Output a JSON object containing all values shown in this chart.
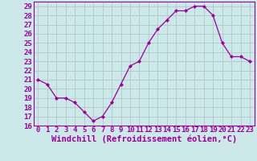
{
  "x": [
    0,
    1,
    2,
    3,
    4,
    5,
    6,
    7,
    8,
    9,
    10,
    11,
    12,
    13,
    14,
    15,
    16,
    17,
    18,
    19,
    20,
    21,
    22,
    23
  ],
  "y": [
    21.0,
    20.5,
    19.0,
    19.0,
    18.5,
    17.5,
    16.5,
    17.0,
    18.5,
    20.5,
    22.5,
    23.0,
    25.0,
    26.5,
    27.5,
    28.5,
    28.5,
    29.0,
    29.0,
    28.0,
    25.0,
    23.5,
    23.5,
    23.0
  ],
  "xlabel": "Windchill (Refroidissement éolien,°C)",
  "ylim": [
    16,
    29.5
  ],
  "xlim": [
    -0.5,
    23.5
  ],
  "yticks": [
    16,
    17,
    18,
    19,
    20,
    21,
    22,
    23,
    24,
    25,
    26,
    27,
    28,
    29
  ],
  "xticks": [
    0,
    1,
    2,
    3,
    4,
    5,
    6,
    7,
    8,
    9,
    10,
    11,
    12,
    13,
    14,
    15,
    16,
    17,
    18,
    19,
    20,
    21,
    22,
    23
  ],
  "line_color": "#990099",
  "marker": "D",
  "marker_size": 2.0,
  "bg_color": "#cce8e8",
  "grid_color": "#b0c8c8",
  "tick_color": "#990099",
  "tick_label_fontsize": 6.5,
  "xlabel_fontsize": 7.5,
  "line_width": 0.9
}
